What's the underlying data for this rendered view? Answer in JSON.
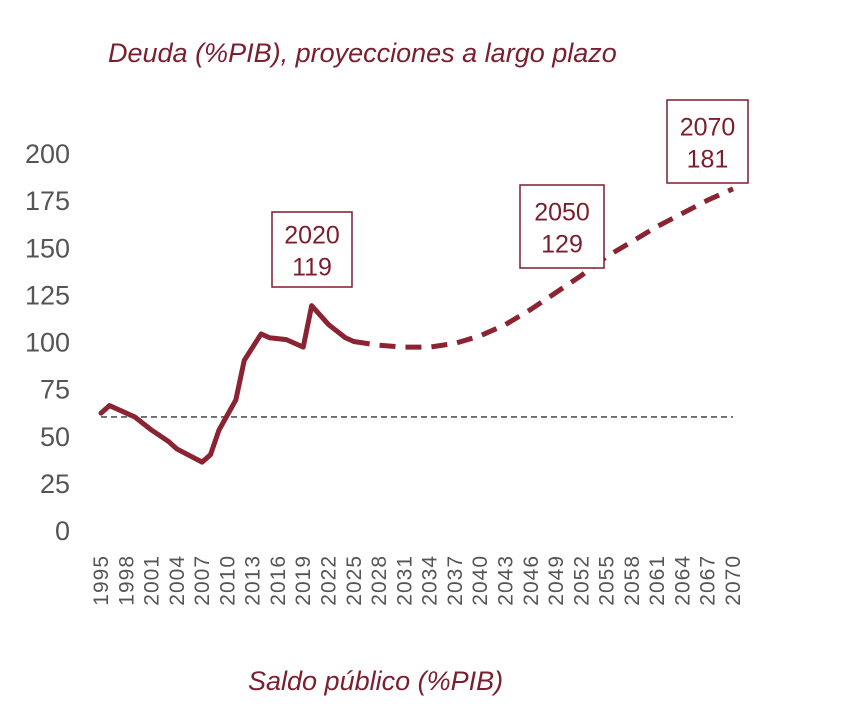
{
  "chart_data": {
    "type": "line",
    "title": "Deuda (%PIB), proyecciones a largo plazo",
    "subtitle": "Saldo público (%PIB)",
    "xlabel": "",
    "ylabel": "",
    "xlim": [
      1995,
      2070
    ],
    "ylim": [
      0,
      200
    ],
    "yticks": [
      "0",
      "25",
      "50",
      "75",
      "100",
      "125",
      "150",
      "175",
      "200"
    ],
    "xticks": [
      "1995",
      "1998",
      "2001",
      "2004",
      "2007",
      "2010",
      "2013",
      "2016",
      "2019",
      "2022",
      "2025",
      "2028",
      "2031",
      "2034",
      "2037",
      "2040",
      "2043",
      "2046",
      "2049",
      "2052",
      "2055",
      "2058",
      "2061",
      "2064",
      "2067",
      "2070"
    ],
    "grid": false,
    "color": "#8b2332",
    "series": [
      {
        "style": "solid",
        "x": [
          1995,
          1996,
          1999,
          2001,
          2003,
          2004,
          2007,
          2008,
          2009,
          2011,
          2012,
          2014,
          2015,
          2017,
          2019,
          2020,
          2022,
          2024,
          2025
        ],
        "y": [
          62,
          66,
          60,
          53,
          47,
          43,
          36,
          40,
          53,
          69,
          90,
          104,
          102,
          101,
          97,
          119,
          109,
          102,
          100
        ]
      },
      {
        "style": "dashed",
        "x": [
          2025,
          2028,
          2031,
          2034,
          2037,
          2040,
          2043,
          2046,
          2049,
          2052,
          2055,
          2058,
          2061,
          2064,
          2067,
          2070
        ],
        "y": [
          100,
          98,
          97,
          97,
          99,
          103,
          109,
          117,
          126,
          135,
          145,
          153,
          161,
          168,
          175,
          181
        ]
      }
    ],
    "reference_line": {
      "y": 60,
      "style": "dashed",
      "color": "#555555"
    },
    "annotations": [
      {
        "year": "2020",
        "value": "119"
      },
      {
        "year": "2050",
        "value": "129"
      },
      {
        "year": "2070",
        "value": "181"
      }
    ]
  }
}
